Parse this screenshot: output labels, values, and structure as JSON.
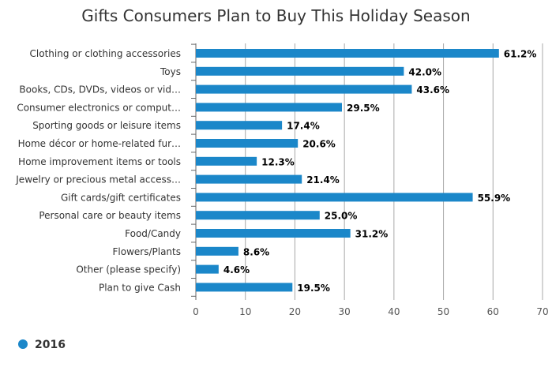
{
  "chart_data": {
    "type": "bar",
    "orientation": "horizontal",
    "title": "Gifts Consumers Plan to Buy This Holiday Season",
    "xlabel": "",
    "ylabel": "",
    "categories": [
      "Clothing or clothing accessories",
      "Toys",
      "Books, CDs, DVDs, videos or vid…",
      "Consumer electronics or comput…",
      "Sporting goods or leisure items",
      "Home décor or home-related fur…",
      "Home improvement items or tools",
      "Jewelry or precious metal access…",
      "Gift cards/gift certificates",
      "Personal care or beauty items",
      "Food/Candy",
      "Flowers/Plants",
      "Other (please specify)",
      "Plan to give Cash"
    ],
    "series": [
      {
        "name": "2016",
        "values": [
          61.2,
          42.0,
          43.6,
          29.5,
          17.4,
          20.6,
          12.3,
          21.4,
          55.9,
          25.0,
          31.2,
          8.6,
          4.6,
          19.5
        ],
        "value_labels": [
          "61.2%",
          "42.0%",
          "43.6%",
          "29.5%",
          "17.4%",
          "20.6%",
          "12.3%",
          "21.4%",
          "55.9%",
          "25.0%",
          "31.2%",
          "8.6%",
          "4.6%",
          "19.5%"
        ]
      }
    ],
    "xlim": [
      0,
      70
    ],
    "xticks": [
      0,
      10,
      20,
      30,
      40,
      50,
      60,
      70
    ],
    "xtick_labels": [
      "0",
      "10",
      "20",
      "30",
      "40",
      "50",
      "60",
      "70"
    ],
    "grid": true,
    "legend_position": "bottom-left",
    "colors": {
      "bar": "#1b87c9",
      "grid": "#a8a8a8",
      "axis": "#666666",
      "title": "#333333",
      "label": "#333333",
      "value_label": "#000000"
    }
  }
}
